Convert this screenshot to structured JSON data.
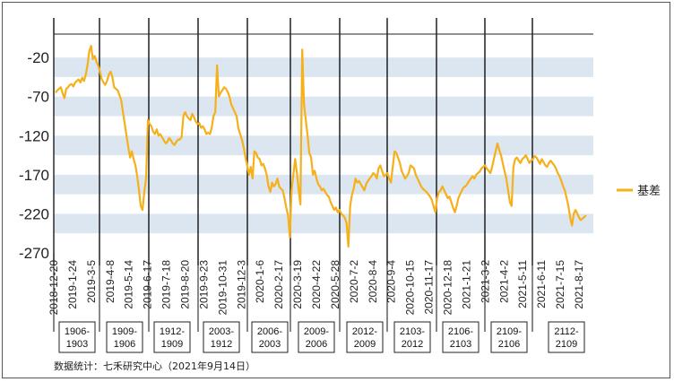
{
  "chart_data": {
    "type": "line",
    "ylim": [
      -270,
      10
    ],
    "yticks": [
      -20,
      -70,
      -120,
      -170,
      -220,
      -270
    ],
    "band_ranges": [
      [
        -20,
        -45
      ],
      [
        -70,
        -95
      ],
      [
        -120,
        -145
      ],
      [
        -170,
        -195
      ],
      [
        -220,
        -245
      ]
    ],
    "grid": false,
    "legend_position": "right",
    "accent_color": "#F5B01A",
    "band_color": "#DCE6F1",
    "x_tick_labels": [
      "2018-12-20",
      "2019-1-24",
      "2019-3-5",
      "2019-4-8",
      "2019-5-14",
      "2019-6-17",
      "2019-7-18",
      "2019-8-20",
      "2019-9-23",
      "2019-10-31",
      "2019-12-3",
      "2020-1-6",
      "2020-2-17",
      "2020-3-19",
      "2020-4-22",
      "2020-5-28",
      "2020-7-2",
      "2020-8-4",
      "2020-9-4",
      "2020-10-15",
      "2020-11-17",
      "2020-12-18",
      "2021-1-21",
      "2021-3-2",
      "2021-4-2",
      "2021-5-11",
      "2021-6-11",
      "2021-7-15",
      "2021-8-17"
    ],
    "series": [
      {
        "name": "基差",
        "x": [
          0,
          1,
          2,
          3,
          4,
          5,
          6,
          7,
          8,
          9,
          10,
          11,
          12,
          13,
          14,
          15,
          16,
          17,
          18,
          19,
          20,
          21,
          22,
          23,
          24,
          25,
          26,
          27,
          28,
          29,
          30,
          31,
          32,
          33,
          34,
          35,
          36,
          37,
          38,
          39,
          40,
          41,
          42,
          43,
          44,
          45,
          46,
          47,
          48,
          49,
          50,
          51,
          52,
          53,
          54,
          55,
          56,
          57,
          58,
          59,
          60,
          61,
          62,
          63,
          64,
          65,
          66,
          67,
          68,
          69,
          70,
          71,
          72,
          73,
          74,
          75,
          76,
          77,
          78,
          79,
          80,
          81,
          82,
          83,
          84,
          85,
          86,
          87,
          88,
          89,
          90,
          91,
          92,
          93,
          94,
          95,
          96,
          97,
          98,
          99,
          100,
          101,
          102,
          103,
          104,
          105,
          106,
          107,
          108,
          109,
          110,
          111,
          112,
          113,
          114,
          115,
          116,
          117,
          118,
          119,
          120,
          121,
          122,
          123,
          124,
          125,
          126,
          127,
          128,
          129,
          130,
          131,
          132,
          133,
          134,
          135,
          136,
          137,
          138,
          139,
          140,
          141,
          142,
          143,
          144,
          145,
          146,
          147,
          148,
          149,
          150,
          151,
          152,
          153,
          154,
          155,
          156,
          157,
          158,
          159,
          160,
          161,
          162,
          163,
          164,
          165,
          166,
          167,
          168,
          169,
          170,
          171,
          172,
          173,
          174,
          175,
          176,
          177,
          178,
          179,
          180,
          181,
          182,
          183,
          184,
          185,
          186,
          187,
          188,
          189,
          190,
          191,
          192,
          193,
          194,
          195,
          196,
          197,
          198,
          199,
          200,
          201,
          202,
          203,
          204,
          205,
          206,
          207,
          208,
          209,
          210,
          211,
          212,
          213,
          214,
          215,
          216,
          217,
          218,
          219,
          220,
          221,
          222,
          223,
          224,
          225,
          226,
          227,
          228,
          229,
          230,
          231,
          232,
          233,
          234,
          235,
          236,
          237,
          238,
          239,
          240,
          241,
          242,
          243,
          244,
          245,
          246,
          247,
          248,
          249,
          250,
          251,
          252,
          253,
          254,
          255,
          256,
          257,
          258,
          259,
          260,
          261,
          262,
          263,
          264,
          265,
          266,
          267,
          268,
          269,
          270,
          271,
          272,
          273,
          274,
          275,
          276,
          277,
          278,
          279,
          280,
          281,
          282,
          283,
          284,
          285,
          286,
          287,
          288,
          289,
          290,
          291,
          292,
          293,
          294,
          295,
          296,
          297,
          298,
          299
        ],
        "values": [
          -65,
          -62,
          -60,
          -58,
          -66,
          -72,
          -60,
          -58,
          -55,
          -54,
          -57,
          -52,
          -50,
          -48,
          -52,
          -46,
          -50,
          -42,
          -30,
          -12,
          -5,
          -22,
          -18,
          -25,
          -30,
          -38,
          -48,
          -52,
          -55,
          -50,
          -42,
          -38,
          -45,
          -58,
          -60,
          -62,
          -68,
          -75,
          -90,
          -105,
          -120,
          -135,
          -148,
          -140,
          -150,
          -158,
          -172,
          -190,
          -210,
          -215,
          -192,
          -175,
          -100,
          -105,
          -108,
          -115,
          -118,
          -112,
          -120,
          -118,
          -122,
          -126,
          -130,
          -128,
          -123,
          -126,
          -130,
          -132,
          -128,
          -125,
          -125,
          -122,
          -95,
          -90,
          -95,
          -98,
          -100,
          -92,
          -96,
          -102,
          -105,
          -104,
          -110,
          -108,
          -112,
          -118,
          -116,
          -118,
          -110,
          -95,
          -90,
          -30,
          -70,
          -65,
          -62,
          -58,
          -60,
          -64,
          -70,
          -80,
          -85,
          -90,
          -95,
          -110,
          -118,
          -125,
          -135,
          -148,
          -158,
          -170,
          -160,
          -175,
          -140,
          -142,
          -148,
          -150,
          -158,
          -156,
          -162,
          -170,
          -185,
          -192,
          -180,
          -185,
          -182,
          -175,
          -185,
          -188,
          -190,
          -200,
          -212,
          -222,
          -250,
          -190,
          -170,
          -150,
          -168,
          -190,
          -208,
          -10,
          -80,
          -100,
          -120,
          -142,
          -148,
          -170,
          -165,
          -175,
          -182,
          -185,
          -190,
          -188,
          -192,
          -196,
          -198,
          -205,
          -210,
          -215,
          -212,
          -218,
          -215,
          -220,
          -222,
          -225,
          -232,
          -262,
          -210,
          -196,
          -188,
          -175,
          -180,
          -178,
          -182,
          -186,
          -190,
          -182,
          -178,
          -175,
          -172,
          -168,
          -170,
          -175,
          -162,
          -158,
          -165,
          -172,
          -170,
          -168,
          -175,
          -180,
          -160,
          -140,
          -142,
          -148,
          -155,
          -165,
          -170,
          -175,
          -172,
          -168,
          -158,
          -160,
          -162,
          -170,
          -175,
          -180,
          -185,
          -188,
          -190,
          -192,
          -195,
          -198,
          -202,
          -210,
          -218,
          -200,
          -192,
          -190,
          -185,
          -190,
          -195,
          -200,
          -198,
          -205,
          -212,
          -218,
          -210,
          -200,
          -195,
          -190,
          -186,
          -185,
          -182,
          -178,
          -175,
          -172,
          -175,
          -170,
          -168,
          -166,
          -162,
          -160,
          -158,
          -162,
          -165,
          -168,
          -160,
          -150,
          -140,
          -130,
          -138,
          -145,
          -155,
          -165,
          -175,
          -190,
          -205,
          -210,
          -160,
          -150,
          -148,
          -152,
          -155,
          -150,
          -148,
          -145,
          -150,
          -155,
          -152,
          -150,
          -146,
          -148,
          -152,
          -156,
          -150,
          -154,
          -158,
          -160,
          -155,
          -152,
          -155,
          -158,
          -162,
          -168,
          -172,
          -178,
          -185,
          -190,
          -200,
          -210,
          -225,
          -235,
          -220,
          -215,
          -220,
          -225,
          -228,
          -226,
          -224,
          -222
        ]
      }
    ],
    "contract_boxes": [
      [
        "1906-",
        "1903"
      ],
      [
        "1909-",
        "1906"
      ],
      [
        "1912-",
        "1909"
      ],
      [
        "2003-",
        "1912"
      ],
      [
        "2006-",
        "2003"
      ],
      [
        "2009-",
        "2006"
      ],
      [
        "2012-",
        "2009"
      ],
      [
        "2103-",
        "2012"
      ],
      [
        "2106-",
        "2103"
      ],
      [
        "2109-",
        "2106"
      ],
      [
        "2112-",
        "2109"
      ]
    ],
    "source": "数据统计：七禾研究中心（2021年9月14日）"
  }
}
